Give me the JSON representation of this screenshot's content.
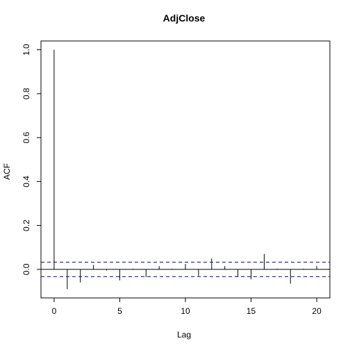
{
  "chart_data": {
    "type": "bar",
    "title": "AdjClose",
    "xlabel": "Lag",
    "ylabel": "ACF",
    "xlim": [
      -1,
      21
    ],
    "ylim": [
      -0.13,
      1.04
    ],
    "x_ticks": [
      0,
      5,
      10,
      15,
      20
    ],
    "x_tick_labels": [
      "0",
      "5",
      "10",
      "15",
      "20"
    ],
    "y_ticks": [
      0.0,
      0.2,
      0.4,
      0.6,
      0.8,
      1.0
    ],
    "y_tick_labels": [
      "0.0",
      "0.2",
      "0.4",
      "0.6",
      "0.8",
      "1.0"
    ],
    "lags": [
      0,
      1,
      2,
      3,
      4,
      5,
      6,
      7,
      8,
      9,
      10,
      11,
      12,
      13,
      14,
      15,
      16,
      17,
      18,
      19,
      20
    ],
    "acf": [
      1.0,
      -0.09,
      -0.06,
      0.02,
      -0.005,
      -0.05,
      0.003,
      -0.035,
      0.015,
      0.003,
      0.025,
      -0.03,
      0.05,
      0.015,
      -0.035,
      -0.045,
      0.07,
      0.003,
      -0.065,
      0.003,
      0.015
    ],
    "confidence_bounds": [
      0.033,
      -0.033
    ],
    "confidence_color": "#0000cc",
    "bar_color": "#000000",
    "grid": false,
    "legend": "none"
  }
}
